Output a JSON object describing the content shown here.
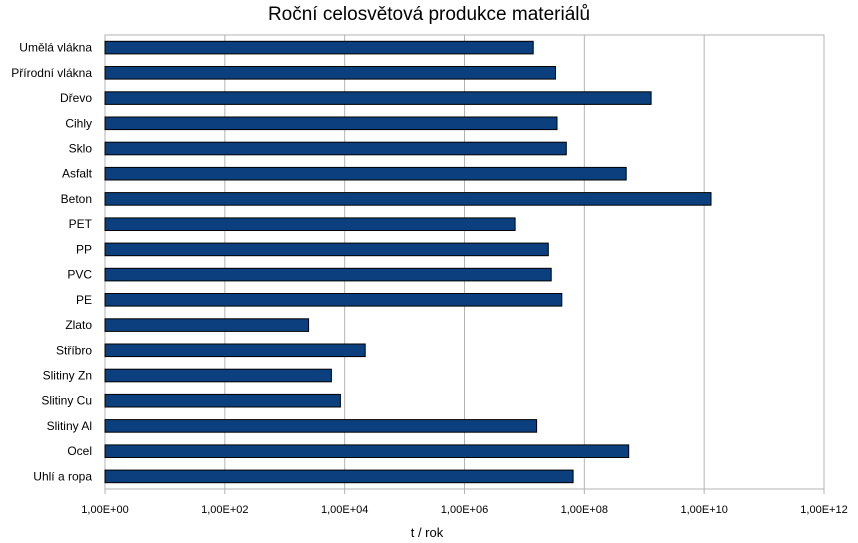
{
  "chart_data": {
    "type": "bar",
    "orientation": "horizontal",
    "title": "Roční celosvětová produkce materiálů",
    "xlabel": "t / rok",
    "ylabel": "",
    "x_scale": "log10",
    "xlim": [
      1,
      1000000000000
    ],
    "x_ticks": [
      1,
      100,
      10000,
      1000000,
      100000000,
      10000000000,
      1000000000000
    ],
    "x_tick_labels": [
      "1,00E+00",
      "1,00E+02",
      "1,00E+04",
      "1,00E+06",
      "1,00E+08",
      "1,00E+10",
      "1,00E+12"
    ],
    "grid": "vertical major gridlines",
    "bar_color": "#0b3f7d",
    "categories": [
      "Umělá vlákna",
      "Přírodní vlákna",
      "Dřevo",
      "Cihly",
      "Sklo",
      "Asfalt",
      "Beton",
      "PET",
      "PP",
      "PVC",
      "PE",
      "Zlato",
      "Stříbro",
      "Slitiny Zn",
      "Slitiny Cu",
      "Slitiny Al",
      "Ocel",
      "Uhlí a ropa"
    ],
    "values": [
      14000000,
      33000000,
      1300000000,
      35000000,
      50000000,
      500000000,
      13000000000,
      7000000,
      25000000,
      28000000,
      42000000,
      2500,
      22000,
      6000,
      8500,
      16000000,
      550000000,
      65000000
    ]
  }
}
